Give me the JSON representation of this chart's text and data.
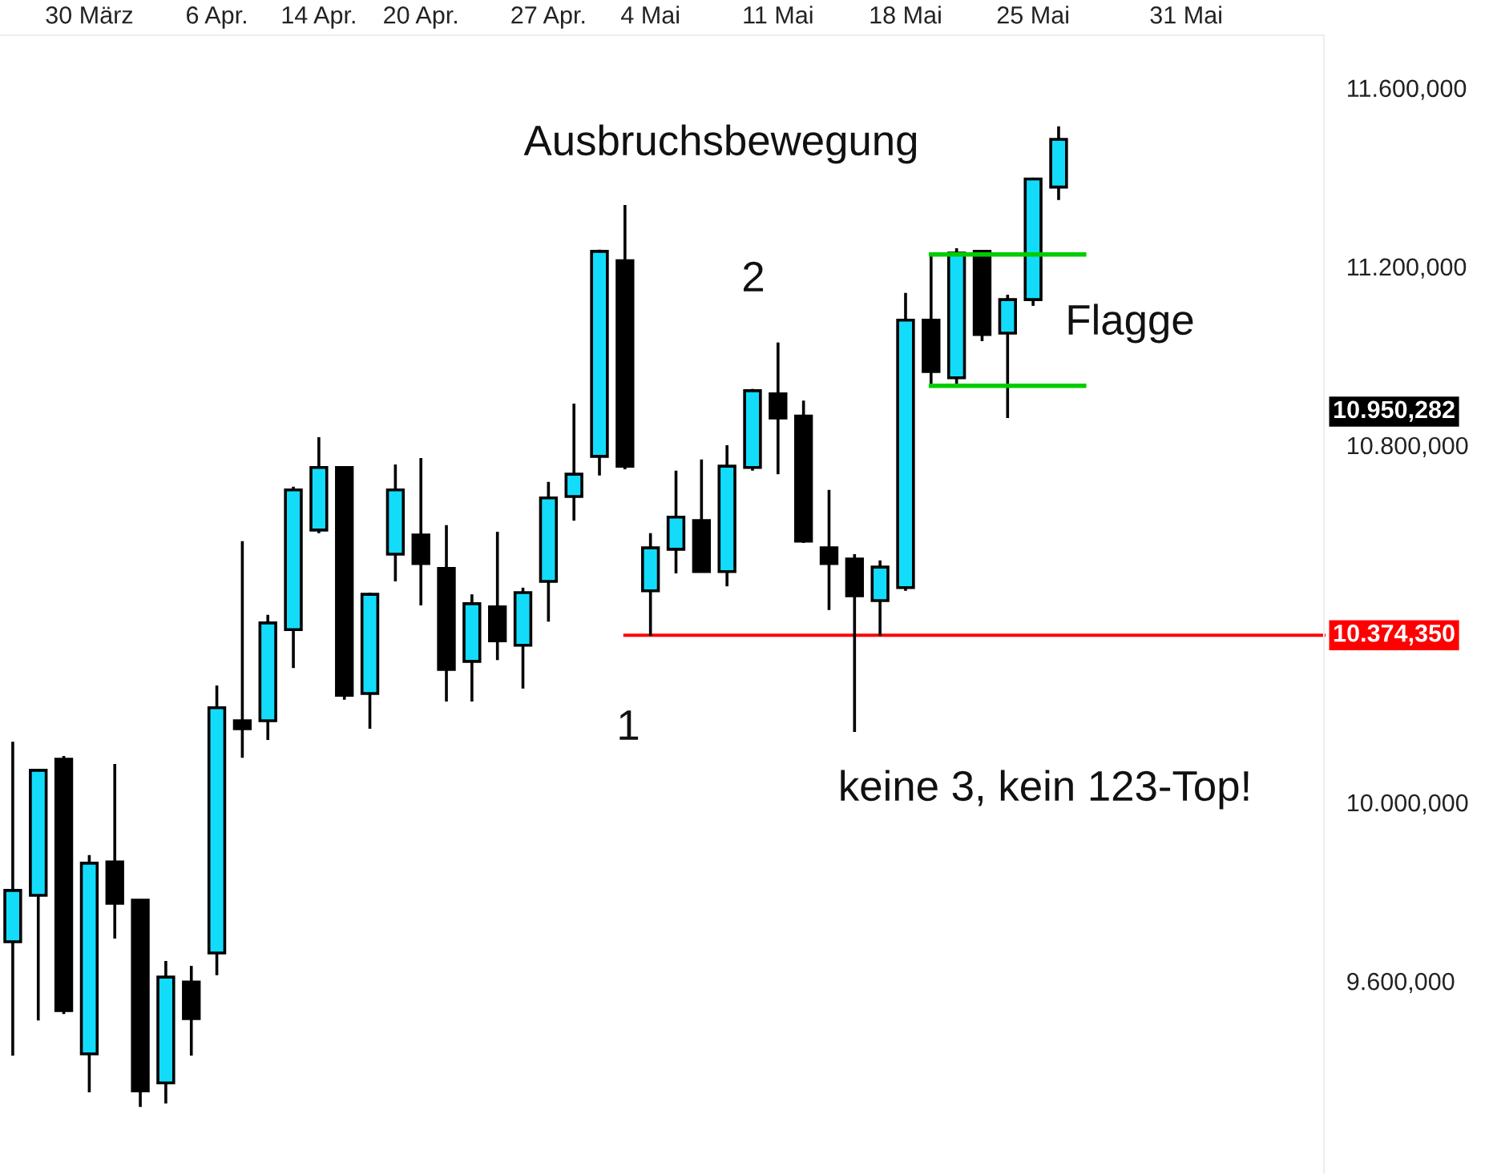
{
  "chart_data": {
    "type": "candlestick",
    "categories": [
      null,
      null,
      null,
      "30 März",
      null,
      null,
      null,
      null,
      "6 Apr.",
      null,
      null,
      null,
      "14 Apr.",
      null,
      null,
      null,
      "20 Apr.",
      null,
      null,
      null,
      null,
      "27 Apr.",
      null,
      null,
      null,
      "4 Mai",
      null,
      null,
      null,
      null,
      "11 Mai",
      null,
      null,
      null,
      null,
      "18 Mai",
      null,
      null,
      null,
      null,
      "25 Mai",
      null,
      null,
      null,
      null,
      null,
      "31 Mai",
      null,
      null,
      null,
      null,
      null
    ],
    "ohlc": [
      [
        9688,
        10136,
        9433,
        9803
      ],
      [
        9792,
        10075,
        9512,
        10072
      ],
      [
        10097,
        10104,
        9526,
        9534
      ],
      [
        9437,
        9882,
        9351,
        9864
      ],
      [
        9867,
        10086,
        9695,
        9774
      ],
      [
        9781,
        9781,
        9318,
        9354
      ],
      [
        9372,
        9645,
        9326,
        9609
      ],
      [
        9598,
        9634,
        9433,
        9516
      ],
      [
        9663,
        10262,
        9613,
        10212
      ],
      [
        10183,
        10585,
        10100,
        10165
      ],
      [
        10183,
        10420,
        10140,
        10402
      ],
      [
        10387,
        10707,
        10301,
        10700
      ],
      [
        10610,
        10818,
        10603,
        10750
      ],
      [
        10750,
        10750,
        10230,
        10240
      ],
      [
        10244,
        10470,
        10165,
        10466
      ],
      [
        10556,
        10757,
        10495,
        10700
      ],
      [
        10599,
        10771,
        10441,
        10535
      ],
      [
        10524,
        10621,
        10226,
        10298
      ],
      [
        10316,
        10466,
        10226,
        10445
      ],
      [
        10438,
        10606,
        10319,
        10362
      ],
      [
        10352,
        10481,
        10255,
        10470
      ],
      [
        10495,
        10718,
        10405,
        10682
      ],
      [
        10685,
        10893,
        10631,
        10735
      ],
      [
        10775,
        11238,
        10732,
        11234
      ],
      [
        11213,
        11338,
        10746,
        10753
      ],
      [
        10474,
        10603,
        10373,
        10570
      ],
      [
        10567,
        10743,
        10513,
        10639
      ],
      [
        10631,
        10768,
        10517,
        10517
      ],
      [
        10517,
        10800,
        10484,
        10753
      ],
      [
        10750,
        10926,
        10743,
        10922
      ],
      [
        10915,
        11030,
        10735,
        10861
      ],
      [
        10865,
        10900,
        10581,
        10585
      ],
      [
        10570,
        10700,
        10431,
        10535
      ],
      [
        10545,
        10556,
        10158,
        10463
      ],
      [
        10452,
        10542,
        10373,
        10527
      ],
      [
        10481,
        11141,
        10474,
        11080
      ],
      [
        11080,
        11227,
        10929,
        10965
      ],
      [
        10951,
        11241,
        10936,
        11230
      ],
      [
        11234,
        11234,
        11033,
        11048
      ],
      [
        11051,
        11137,
        10861,
        11126
      ],
      [
        11126,
        11399,
        11112,
        11396
      ],
      [
        11378,
        11514,
        11349,
        11485
      ],
      null,
      null,
      null,
      null,
      null,
      null,
      null,
      null,
      null,
      null
    ],
    "colors": [
      "#13dcfb",
      "#13dcfb",
      "#000000",
      "#13dcfb",
      "#000000",
      "#000000",
      "#13dcfb",
      "#000000",
      "#13dcfb",
      "#000000",
      "#13dcfb",
      "#13dcfb",
      "#13dcfb",
      "#000000",
      "#13dcfb",
      "#13dcfb",
      "#000000",
      "#000000",
      "#13dcfb",
      "#000000",
      "#13dcfb",
      "#13dcfb",
      "#13dcfb",
      "#13dcfb",
      "#000000",
      "#13dcfb",
      "#13dcfb",
      "#000000",
      "#13dcfb",
      "#13dcfb",
      "#000000",
      "#000000",
      "#000000",
      "#000000",
      "#13dcfb",
      "#13dcfb",
      "#000000",
      "#13dcfb",
      "#000000",
      "#13dcfb",
      "#13dcfb",
      "#13dcfb",
      null,
      null,
      null,
      null,
      null,
      null,
      null,
      null,
      null,
      null
    ],
    "series": [
      {
        "type": "line",
        "color": "#00cc00",
        "values": [
          null,
          null,
          null,
          null,
          null,
          null,
          null,
          null,
          null,
          null,
          null,
          null,
          null,
          null,
          null,
          null,
          null,
          null,
          null,
          null,
          null,
          null,
          null,
          null,
          null,
          null,
          null,
          null,
          null,
          null,
          null,
          null,
          null,
          null,
          null,
          null,
          11227,
          11227,
          11227,
          11227,
          11227,
          11227,
          11227,
          null,
          null,
          null,
          null,
          null,
          null,
          null,
          null,
          null
        ]
      },
      {
        "type": "line",
        "color": "#00cc00",
        "values": [
          null,
          null,
          null,
          null,
          null,
          null,
          null,
          null,
          null,
          null,
          null,
          null,
          null,
          null,
          null,
          null,
          null,
          null,
          null,
          null,
          null,
          null,
          null,
          null,
          null,
          null,
          null,
          null,
          null,
          null,
          null,
          null,
          null,
          null,
          null,
          null,
          10933,
          10933,
          10933,
          10933,
          10933,
          10933,
          10933,
          null,
          null,
          null,
          null,
          null,
          null,
          null,
          null,
          null
        ]
      }
    ],
    "ylim": [
      9168,
      11718
    ],
    "yticks": [
      {
        "value": 9600,
        "label": "9.600,000"
      },
      {
        "value": 10000,
        "label": "10.000,000"
      },
      {
        "value": 10800,
        "label": "10.800,000"
      },
      {
        "value": 11200,
        "label": "11.200,000"
      },
      {
        "value": 11600,
        "label": "11.600,000"
      }
    ],
    "annotations": [
      "Ausbruchsbewegung",
      "2",
      "1",
      "Flagge",
      "keine 3, kein 123-Top!",
      "10.950,282"
    ],
    "ref_lines": [
      {
        "axis": "y",
        "value": 10374.35,
        "label": "10.374,350",
        "color": "#ff0000"
      }
    ],
    "grid": false,
    "legend": false
  }
}
